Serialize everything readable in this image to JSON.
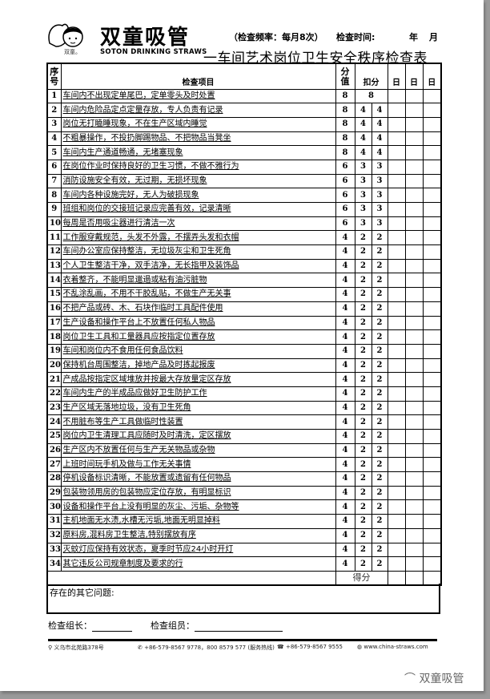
{
  "header": {
    "brand": "双童吸管",
    "brand_small": "双童。",
    "brand_en": "SOTON DRINKING STRAWS",
    "frequency": "（检查频率：每月8次）",
    "check_time_label": "检查时间:",
    "year": "年",
    "month": "月",
    "title": "一车间艺术岗位卫生安全秩序检查表"
  },
  "table": {
    "headers": {
      "seq": "序号",
      "item": "检查项目",
      "score": "分值",
      "deduct": "扣分",
      "day1": "日",
      "day2": "日",
      "day3": "日"
    },
    "rows": [
      {
        "n": "1",
        "text": "车间内不出现定单尾巴，定单零头及时处置",
        "score": "8",
        "d1": "8",
        "d2": ""
      },
      {
        "n": "2",
        "text": "车间内危险品定点定量存放，专人负责有记录",
        "score": "8",
        "d1": "4",
        "d2": "4"
      },
      {
        "n": "3",
        "text": "岗位无打瞌睡现象，不在生产区域内睡觉",
        "score": "8",
        "d1": "4",
        "d2": "4"
      },
      {
        "n": "4",
        "text": "不粗暴操作，不投扔脚踢物品、不把物品当凳坐",
        "score": "8",
        "d1": "4",
        "d2": "4"
      },
      {
        "n": "5",
        "text": "车间内生产通道畅通，无堵塞现象",
        "score": "8",
        "d1": "4",
        "d2": "4"
      },
      {
        "n": "6",
        "text": "在岗位作业时保持良好的卫生习惯，不做不雅行为",
        "score": "6",
        "d1": "3",
        "d2": "3"
      },
      {
        "n": "7",
        "text": "消防设施安全有效，无过期，无损坏现象",
        "score": "6",
        "d1": "3",
        "d2": "3"
      },
      {
        "n": "8",
        "text": "车间内各种设施完好，无人为破损现象",
        "score": "6",
        "d1": "3",
        "d2": "3"
      },
      {
        "n": "9",
        "text": "班组和岗位的交接班记录应完善有效，记录清晰",
        "score": "6",
        "d1": "3",
        "d2": "3"
      },
      {
        "n": "10",
        "text": "每周是否用吸尘器进行清洁一次",
        "score": "6",
        "d1": "3",
        "d2": "3"
      },
      {
        "n": "11",
        "text": "工作服穿戴规范，头发不外露，不摆弄头发和衣帽",
        "score": "4",
        "d1": "2",
        "d2": "2"
      },
      {
        "n": "12",
        "text": "车间办公室应保持整洁，无垃圾灰尘和卫生死角",
        "score": "4",
        "d1": "2",
        "d2": "2"
      },
      {
        "n": "13",
        "text": "个人卫生整洁干净，双手洁净，无长指甲及装饰品",
        "score": "4",
        "d1": "2",
        "d2": "2"
      },
      {
        "n": "14",
        "text": "衣着整齐，不能明显邋遢或粘有油污脏物",
        "score": "4",
        "d1": "2",
        "d2": "2"
      },
      {
        "n": "15",
        "text": "不乱涂乱画，不用不干胶乱贴，不做生产无关事",
        "score": "4",
        "d1": "2",
        "d2": "2"
      },
      {
        "n": "16",
        "text": "不把产品或砖、木、石块作临时工具配件使用",
        "score": "4",
        "d1": "2",
        "d2": "2"
      },
      {
        "n": "17",
        "text": "生产设备和操作平台上不放置任何私人物品",
        "score": "4",
        "d1": "2",
        "d2": "2"
      },
      {
        "n": "18",
        "text": "岗位卫生工具和工量器具应按指定位置存放",
        "score": "4",
        "d1": "2",
        "d2": "2"
      },
      {
        "n": "19",
        "text": "车间和岗位内不食用任何食品饮料",
        "score": "4",
        "d1": "2",
        "d2": "2"
      },
      {
        "n": "20",
        "text": "保持机台周围整洁，掉地产品及时拣起报废",
        "score": "4",
        "d1": "2",
        "d2": "2"
      },
      {
        "n": "21",
        "text": "产成品按指定区域堆放并按最大存放量定区存放",
        "score": "4",
        "d1": "2",
        "d2": "2"
      },
      {
        "n": "22",
        "text": "车间内生产的半成品应做好卫生防护工作",
        "score": "4",
        "d1": "2",
        "d2": "2"
      },
      {
        "n": "23",
        "text": "生产区域无落地垃圾，没有卫生死角",
        "score": "4",
        "d1": "2",
        "d2": "2"
      },
      {
        "n": "24",
        "text": "不用脏布等生产工具做临时性装置",
        "score": "4",
        "d1": "2",
        "d2": "2"
      },
      {
        "n": "25",
        "text": "岗位内卫生清理工具应随时及时清洗，定区摆放",
        "score": "4",
        "d1": "2",
        "d2": "2"
      },
      {
        "n": "26",
        "text": "生产区内不放置任何与生产无关物品或杂物",
        "score": "4",
        "d1": "2",
        "d2": "2"
      },
      {
        "n": "27",
        "text": "上班时间玩手机及做与工作无关事情",
        "score": "4",
        "d1": "2",
        "d2": "2"
      },
      {
        "n": "28",
        "text": "停机设备标识清晰，不能放置或遗留有任何物品",
        "score": "4",
        "d1": "2",
        "d2": "2"
      },
      {
        "n": "29",
        "text": "包装物领用房的包装物应定位存放，有明显标识",
        "score": "4",
        "d1": "2",
        "d2": "2"
      },
      {
        "n": "30",
        "text": "设备和操作平台上没有明显的灰尘、污垢、杂物等",
        "score": "4",
        "d1": "2",
        "d2": "2"
      },
      {
        "n": "31",
        "text": "主机地面无水渍,水槽无污垢,地面无明显掉料",
        "score": "4",
        "d1": "2",
        "d2": "2"
      },
      {
        "n": "32",
        "text": "原料房,混料房卫生整洁,特别摆放有序",
        "score": "4",
        "d1": "2",
        "d2": "2"
      },
      {
        "n": "33",
        "text": "灭蚊灯应保持有效状态，夏季时节应24小时开灯",
        "score": "4",
        "d1": "2",
        "d2": "2"
      },
      {
        "n": "34",
        "text": "其它违反公司规章制度及要求的行",
        "score": "4",
        "d1": "2",
        "d2": "2"
      }
    ],
    "total_label": "得分"
  },
  "issues_label": "存在的其它问题:",
  "signatures": {
    "leader": "检查组长：",
    "member": "检查组员："
  },
  "footer": {
    "address": "义乌市北苑路378号",
    "phone": "+86-579-8567 9778，800 8579 577 (服务热线)",
    "fax": "+86-579-8567 9555",
    "web": "www.china-straws.com"
  },
  "watermark": "双童吸管"
}
